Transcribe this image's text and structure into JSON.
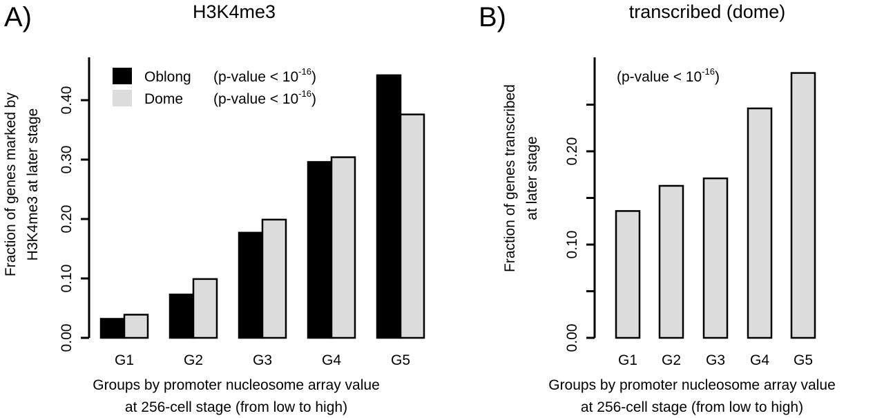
{
  "panels": [
    {
      "letter": "A)",
      "title": "H3K4me3",
      "ylabel_lines": [
        "Fraction of genes marked by",
        "H3K4me3 at later stage"
      ],
      "xlabel_lines": [
        "Groups by promoter nucleosome array value",
        "at 256-cell stage (from low to high)"
      ],
      "yticks": [
        {
          "value": 0.0,
          "label": "0.00"
        },
        {
          "value": 0.1,
          "label": "0.10"
        },
        {
          "value": 0.2,
          "label": "0.20"
        },
        {
          "value": 0.3,
          "label": "0.30"
        },
        {
          "value": 0.4,
          "label": "0.40"
        }
      ],
      "legend": [
        {
          "name": "Oblong",
          "pvalue": "(p-value < 10",
          "exp": "-16",
          "close": ")",
          "color": "#000000"
        },
        {
          "name": "Dome",
          "pvalue": "(p-value < 10",
          "exp": "-16",
          "close": ")",
          "color": "#dcdcdc"
        }
      ]
    },
    {
      "letter": "B)",
      "title": "transcribed (dome)",
      "ylabel_lines": [
        "Fraction of genes transcribed",
        "at later stage"
      ],
      "xlabel_lines": [
        "Groups by promoter nucleosome array value",
        "at 256-cell stage (from low to high)"
      ],
      "yticks": [
        {
          "value": 0.0,
          "label": "0.00"
        },
        {
          "value": 0.05,
          "label": ""
        },
        {
          "value": 0.1,
          "label": "0.10"
        },
        {
          "value": 0.15,
          "label": ""
        },
        {
          "value": 0.2,
          "label": "0.20"
        },
        {
          "value": 0.25,
          "label": ""
        }
      ],
      "annotation": {
        "text": "(p-value < 10",
        "exp": "-16",
        "close": ")"
      }
    }
  ],
  "chart_data": [
    {
      "type": "bar",
      "title": "H3K4me3",
      "xlabel": "Groups by promoter nucleosome array value at 256-cell stage (from low to high)",
      "ylabel": "Fraction of genes marked by H3K4me3 at later stage",
      "categories": [
        "G1",
        "G2",
        "G3",
        "G4",
        "G5"
      ],
      "series": [
        {
          "name": "Oblong",
          "color": "#000000",
          "values": [
            0.032,
            0.073,
            0.177,
            0.296,
            0.442
          ]
        },
        {
          "name": "Dome",
          "color": "#dcdcdc",
          "values": [
            0.039,
            0.099,
            0.199,
            0.304,
            0.376
          ]
        }
      ],
      "ylim": [
        0,
        0.45
      ],
      "grid": false,
      "legend": "top-left"
    },
    {
      "type": "bar",
      "title": "transcribed (dome)",
      "xlabel": "Groups by promoter nucleosome array value at 256-cell stage (from low to high)",
      "ylabel": "Fraction of genes transcribed at later stage",
      "categories": [
        "G1",
        "G2",
        "G3",
        "G4",
        "G5"
      ],
      "series": [
        {
          "color": "#dcdcdc",
          "values": [
            0.136,
            0.163,
            0.171,
            0.246,
            0.284
          ]
        }
      ],
      "ylim": [
        0,
        0.29
      ],
      "grid": false
    }
  ]
}
